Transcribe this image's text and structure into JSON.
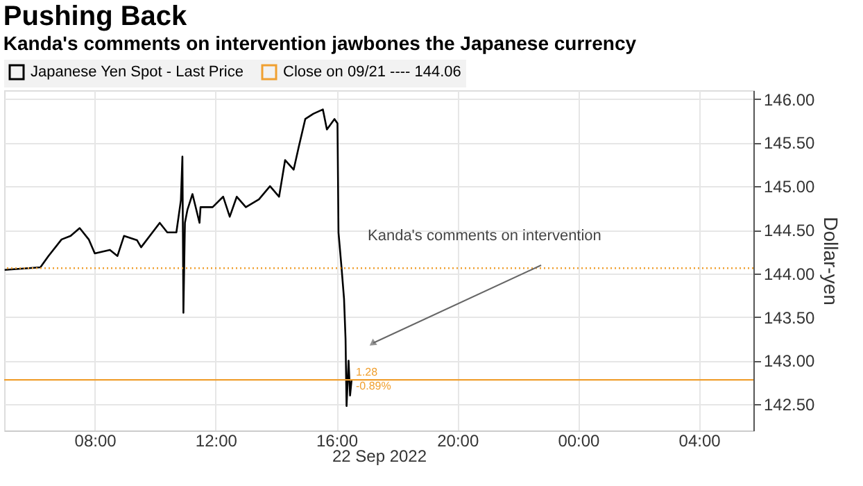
{
  "chart_data": {
    "type": "line",
    "title": "Pushing Back",
    "subtitle": "Kanda's comments on intervention jawbones the Japanese currency",
    "xlabel": "22 Sep 2022",
    "ylabel": "Dollar-yen",
    "x": [
      "2022-09-22T05:01",
      "2022-09-22T06:12",
      "2022-09-22T06:28",
      "2022-09-22T06:54",
      "2022-09-22T07:12",
      "2022-09-22T07:30",
      "2022-09-22T07:48",
      "2022-09-22T08:00",
      "2022-09-22T08:30",
      "2022-09-22T08:45",
      "2022-09-22T08:58",
      "2022-09-22T09:24",
      "2022-09-22T09:32",
      "2022-09-22T10:09",
      "2022-09-22T10:24",
      "2022-09-22T10:42",
      "2022-09-22T10:51",
      "2022-09-22T10:54",
      "2022-09-22T10:56",
      "2022-09-22T10:59",
      "2022-09-22T11:04",
      "2022-09-22T11:14",
      "2022-09-22T11:28",
      "2022-09-22T11:30",
      "2022-09-22T11:54",
      "2022-09-22T12:15",
      "2022-09-22T12:28",
      "2022-09-22T12:42",
      "2022-09-22T13:00",
      "2022-09-22T13:26",
      "2022-09-22T13:48",
      "2022-09-22T14:06",
      "2022-09-22T14:18",
      "2022-09-22T14:35",
      "2022-09-22T14:45",
      "2022-09-22T14:58",
      "2022-09-22T15:14",
      "2022-09-22T15:33",
      "2022-09-22T15:41",
      "2022-09-22T15:56",
      "2022-09-22T16:02",
      "2022-09-22T16:04",
      "2022-09-22T16:10",
      "2022-09-22T16:15",
      "2022-09-22T16:18",
      "2022-09-22T16:20",
      "2022-09-22T16:24",
      "2022-09-22T16:27",
      "2022-09-22T16:30"
    ],
    "series": [
      {
        "name": "Japanese Yen Spot - Last Price",
        "color": "#000000",
        "values": [
          144.04,
          144.07,
          144.2,
          144.39,
          144.43,
          144.52,
          144.39,
          144.23,
          144.27,
          144.2,
          144.43,
          144.38,
          144.3,
          144.58,
          144.47,
          144.47,
          144.84,
          145.34,
          143.55,
          144.58,
          144.73,
          144.91,
          144.58,
          144.76,
          144.76,
          144.88,
          144.65,
          144.88,
          144.76,
          144.85,
          145.0,
          144.88,
          145.3,
          145.19,
          145.45,
          145.77,
          145.83,
          145.88,
          145.65,
          145.77,
          145.72,
          144.47,
          144.07,
          143.71,
          143.25,
          142.48,
          143.0,
          142.6,
          142.78
        ]
      }
    ],
    "xlim": [
      "2022-09-22T05:00",
      "2022-09-23T05:48"
    ],
    "xticks": [
      {
        "value": "2022-09-22T08:00",
        "label": "08:00"
      },
      {
        "value": "2022-09-22T12:00",
        "label": "12:00"
      },
      {
        "value": "2022-09-22T16:00",
        "label": "16:00"
      },
      {
        "value": "2022-09-22T20:00",
        "label": "20:00"
      },
      {
        "value": "2022-09-23T00:00",
        "label": "00:00"
      },
      {
        "value": "2022-09-23T04:00",
        "label": "04:00"
      }
    ],
    "ylim": [
      142.2,
      146.1
    ],
    "yticks": [
      {
        "value": 142.5,
        "label": "142.50"
      },
      {
        "value": 143,
        "label": "143.00"
      },
      {
        "value": 143.5,
        "label": "143.50"
      },
      {
        "value": 144,
        "label": "144.00"
      },
      {
        "value": 144.5,
        "label": "144.50"
      },
      {
        "value": 145,
        "label": "145.00"
      },
      {
        "value": 145.5,
        "label": "145.50"
      },
      {
        "value": 146,
        "label": "146.00"
      }
    ],
    "ref_lines": [
      {
        "axis": "y",
        "value": 144.06,
        "label": "Close on 09/21 ---- 144.06",
        "color": "#f0a030",
        "line_style": "dotted"
      },
      {
        "axis": "y",
        "value": 142.78,
        "color": "#f0a030",
        "line_style": "solid"
      }
    ],
    "annotations": [
      "Kanda's comments on intervention",
      {
        "text": "1.28",
        "x": "2022-09-22T16:33",
        "y": 142.86
      },
      {
        "text": "-0.89%",
        "x": "2022-09-22T16:33",
        "y": 142.7
      }
    ],
    "grid": true,
    "legend": "top left",
    "line_style": "solid",
    "marker": "none"
  }
}
